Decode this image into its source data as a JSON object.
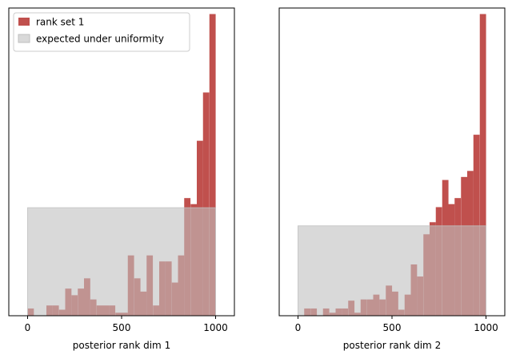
{
  "colors": {
    "rank": "#c0504d",
    "uniform": "#bfbfbf",
    "frame": "#000000",
    "background": "#ffffff"
  },
  "legend": {
    "placement": "upper-left",
    "items": [
      {
        "label": "rank set 1",
        "color": "#c0504d"
      },
      {
        "label": "expected under uniformity",
        "color": "#bfbfbf"
      }
    ]
  },
  "chart_data": [
    {
      "type": "bar",
      "xlabel": "posterior rank dim 1",
      "ylabel": "",
      "xlim": [
        -100,
        1100
      ],
      "ylim": [
        0,
        510
      ],
      "xticks": [
        0,
        500,
        1000
      ],
      "yticks_visible": false,
      "bin_width": 33.3,
      "bins": [
        0,
        33,
        67,
        100,
        133,
        167,
        200,
        233,
        267,
        300,
        333,
        367,
        400,
        433,
        467,
        500,
        533,
        567,
        600,
        633,
        667,
        700,
        733,
        767,
        800,
        833,
        867,
        900,
        933,
        967
      ],
      "values": [
        12,
        0,
        0,
        17,
        17,
        10,
        45,
        34,
        45,
        62,
        27,
        17,
        17,
        17,
        5,
        5,
        100,
        62,
        40,
        100,
        17,
        90,
        90,
        55,
        100,
        195,
        185,
        290,
        370,
        500
      ],
      "uniform_band": {
        "x_range": [
          0,
          1000
        ],
        "y_range": [
          0,
          179
        ]
      }
    },
    {
      "type": "bar",
      "xlabel": "posterior rank dim 2",
      "ylabel": "",
      "xlim": [
        -100,
        1100
      ],
      "ylim": [
        0,
        510
      ],
      "xticks": [
        0,
        500,
        1000
      ],
      "yticks_visible": false,
      "bin_width": 33.3,
      "bins": [
        0,
        33,
        67,
        100,
        133,
        167,
        200,
        233,
        267,
        300,
        333,
        367,
        400,
        433,
        467,
        500,
        533,
        567,
        600,
        633,
        667,
        700,
        733,
        767,
        800,
        833,
        867,
        900,
        933,
        967
      ],
      "values": [
        0,
        12,
        12,
        0,
        12,
        5,
        12,
        12,
        25,
        5,
        27,
        27,
        35,
        27,
        50,
        40,
        10,
        35,
        85,
        65,
        135,
        155,
        180,
        225,
        185,
        195,
        230,
        240,
        300,
        500
      ],
      "uniform_band": {
        "x_range": [
          0,
          1000
        ],
        "y_range": [
          0,
          149
        ]
      }
    }
  ]
}
